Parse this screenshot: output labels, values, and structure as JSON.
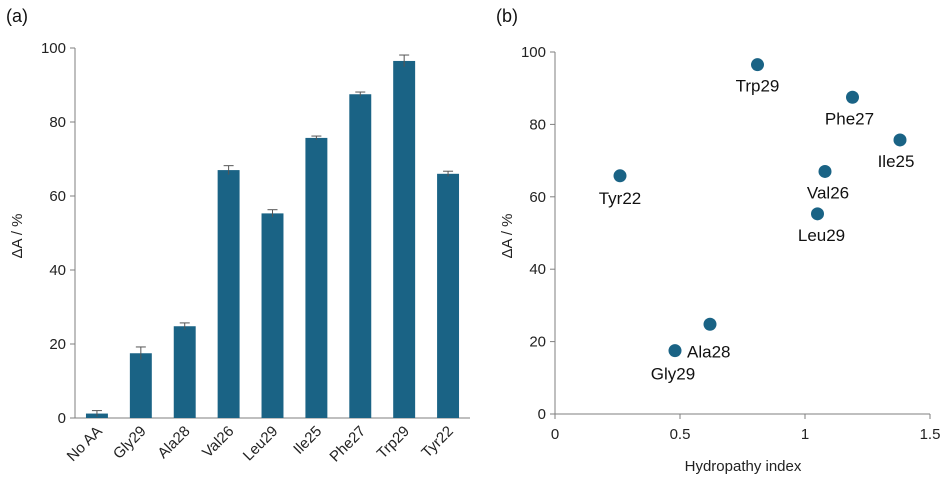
{
  "panels": {
    "a_label": "(a)",
    "b_label": "(b)"
  },
  "colors": {
    "bar": "#1a6385",
    "point": "#1a6385"
  },
  "chart_data": [
    {
      "type": "bar",
      "categories": [
        "No AA",
        "Gly29",
        "Ala28",
        "Val26",
        "Leu29",
        "Ile25",
        "Phe27",
        "Trp29",
        "Tyr22"
      ],
      "values": [
        1.2,
        17.5,
        24.8,
        67.0,
        55.3,
        75.7,
        87.5,
        96.5,
        66.0
      ],
      "errors": [
        0.8,
        1.7,
        0.9,
        1.2,
        1.0,
        0.5,
        0.6,
        1.6,
        0.7
      ],
      "title": "",
      "xlabel": "",
      "ylabel": "ΔA / %",
      "ylim": [
        0,
        100
      ],
      "yticks": [
        0,
        20,
        40,
        60,
        80,
        100
      ],
      "grid": false
    },
    {
      "type": "scatter",
      "points": [
        {
          "label": "Tyr22",
          "x": 0.26,
          "y": 65.8,
          "label_pos": "below"
        },
        {
          "label": "Gly29",
          "x": 0.48,
          "y": 17.5,
          "label_pos": "below"
        },
        {
          "label": "Ala28",
          "x": 0.62,
          "y": 24.8,
          "label_pos": "below"
        },
        {
          "label": "Trp29",
          "x": 0.81,
          "y": 96.5,
          "label_pos": "below"
        },
        {
          "label": "Leu29",
          "x": 1.05,
          "y": 55.3,
          "label_pos": "below"
        },
        {
          "label": "Val26",
          "x": 1.08,
          "y": 67.0,
          "label_pos": "below"
        },
        {
          "label": "Phe27",
          "x": 1.19,
          "y": 87.5,
          "label_pos": "below"
        },
        {
          "label": "Ile25",
          "x": 1.38,
          "y": 75.7,
          "label_pos": "below"
        }
      ],
      "title": "",
      "xlabel": "Hydropathy index",
      "ylabel": "ΔA / %",
      "xlim": [
        0,
        1.5
      ],
      "ylim": [
        0,
        100
      ],
      "xticks": [
        0,
        0.5,
        1,
        1.5
      ],
      "xtick_labels": [
        "0",
        "0.5",
        "1",
        "1.5"
      ],
      "yticks": [
        0,
        20,
        40,
        60,
        80,
        100
      ],
      "grid": false
    }
  ]
}
